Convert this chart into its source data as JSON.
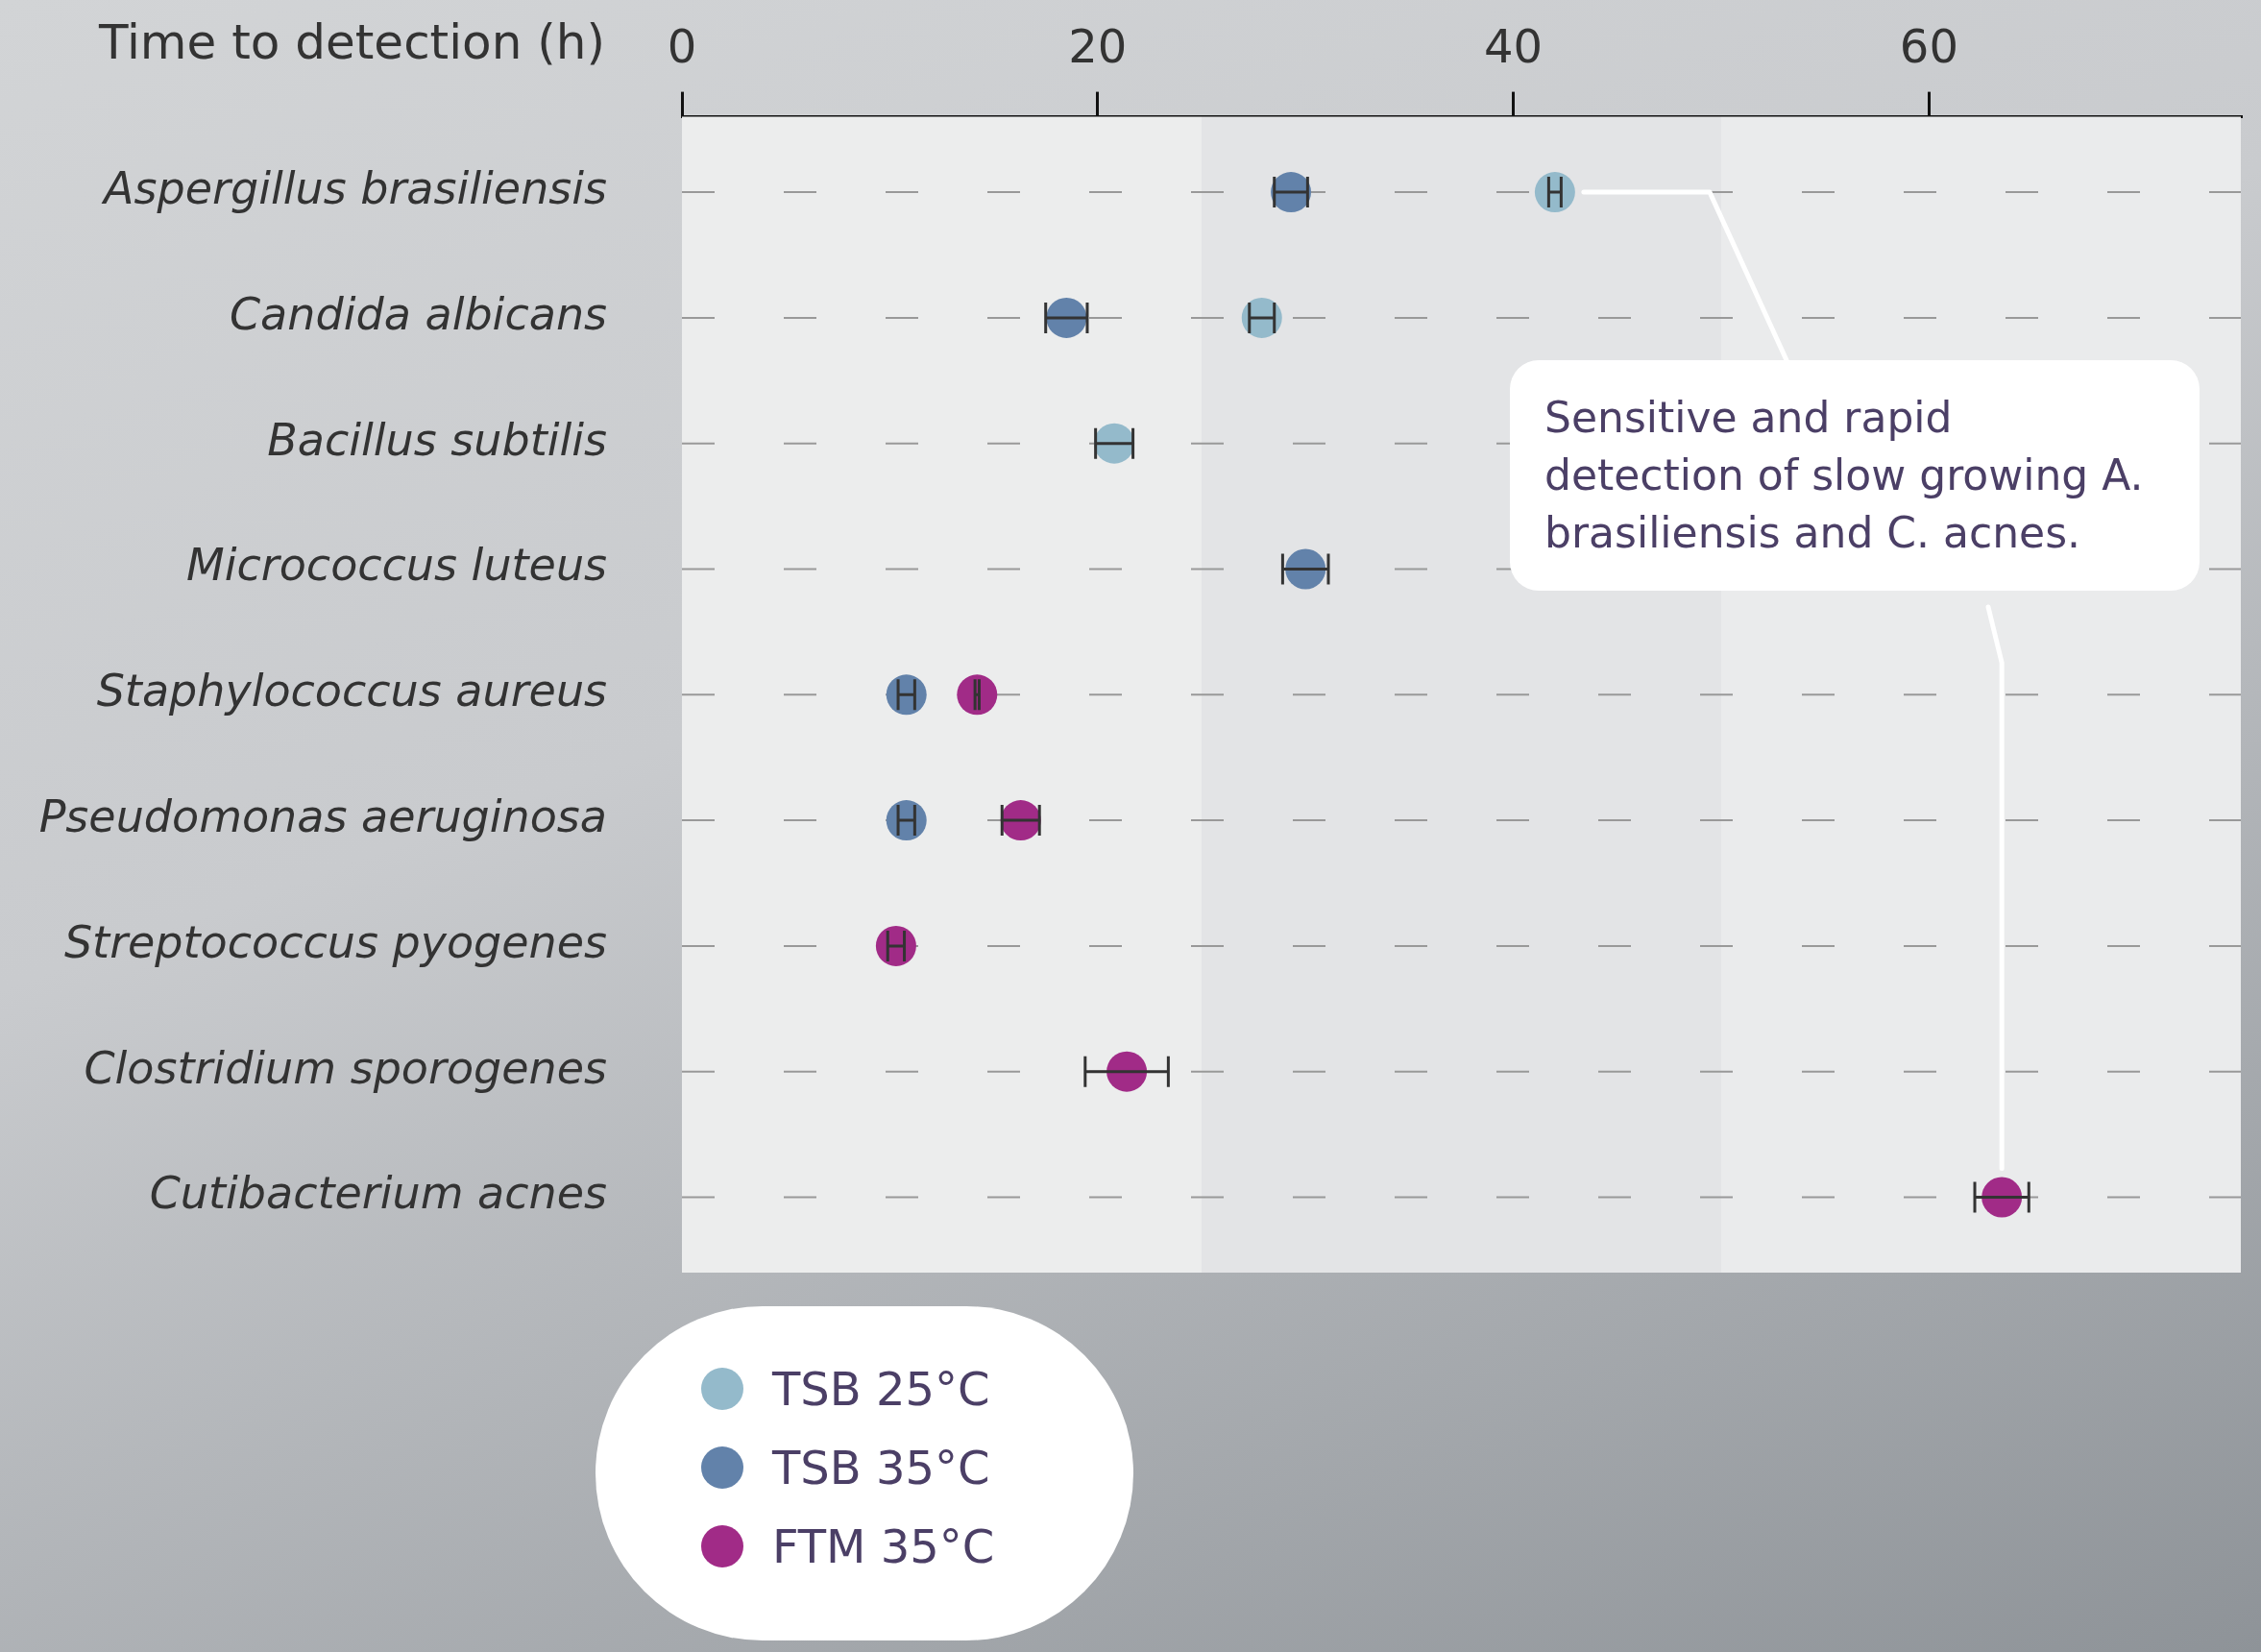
{
  "chart_data": {
    "type": "scatter",
    "orientation": "horizontal",
    "xlabel": "Time to detection (h)",
    "categories": [
      "Aspergillus brasiliensis",
      "Candida albicans",
      "Bacillus subtilis",
      "Micrococcus luteus",
      "Staphylococcus aureus",
      "Pseudomonas aeruginosa",
      "Streptococcus pyogenes",
      "Clostridium sporogenes",
      "Cutibacterium acnes"
    ],
    "series": [
      {
        "name": "TSB 25°C",
        "color": "#94bacb",
        "values": [
          42.0,
          27.9,
          20.8,
          null,
          null,
          null,
          null,
          null,
          null
        ],
        "errors": [
          0.3,
          0.6,
          0.9,
          null,
          null,
          null,
          null,
          null,
          null
        ]
      },
      {
        "name": "TSB 35°C",
        "color": "#6282aa",
        "values": [
          29.3,
          18.5,
          null,
          30.0,
          10.8,
          10.8,
          null,
          null,
          null
        ],
        "errors": [
          0.8,
          1.0,
          null,
          1.1,
          0.4,
          0.4,
          null,
          null,
          null
        ]
      },
      {
        "name": "FTM 35°C",
        "color": "#a12b87",
        "values": [
          null,
          null,
          null,
          null,
          14.2,
          16.3,
          10.3,
          21.4,
          63.5
        ],
        "errors": [
          null,
          null,
          null,
          null,
          0.1,
          0.9,
          0.4,
          2.0,
          1.3
        ]
      }
    ],
    "xlim": [
      0,
      75
    ],
    "xticks": [
      0,
      20,
      40,
      60
    ],
    "bands": [
      {
        "axis": "x",
        "from": 0,
        "to": 25,
        "color": "#eceded"
      },
      {
        "axis": "x",
        "from": 25,
        "to": 50,
        "color": "#e3e4e6"
      },
      {
        "axis": "x",
        "from": 50,
        "to": 75,
        "color": "#eaebec"
      }
    ],
    "grid": "y",
    "marker": "circle",
    "legend": "bottom",
    "annotations": [
      "Sensitive and rapid detection of slow growing A. brasiliensis and C. acnes."
    ]
  }
}
